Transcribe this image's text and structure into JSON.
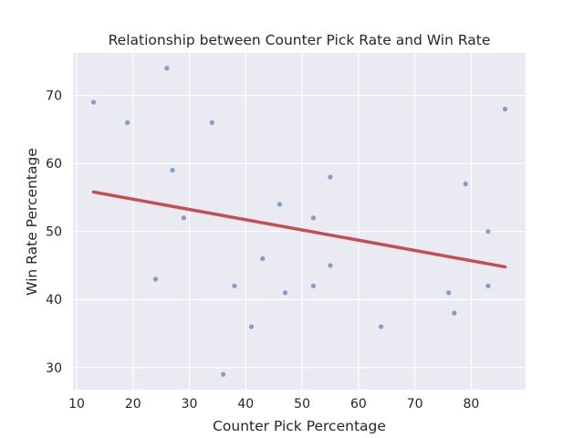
{
  "chart_data": {
    "type": "scatter",
    "title": "Relationship between Counter Pick Rate and Win Rate",
    "xlabel": "Counter Pick Percentage",
    "ylabel": "Win Rate Percentage",
    "xlim": [
      9.35,
      89.65
    ],
    "ylim": [
      26.75,
      76.25
    ],
    "xticks": [
      10,
      20,
      30,
      40,
      50,
      60,
      70,
      80
    ],
    "yticks": [
      30,
      40,
      50,
      60,
      70
    ],
    "grid": true,
    "colors": {
      "background": "#EAEAF2",
      "grid": "#FFFFFF",
      "points": "#4C72B0",
      "regression": "#C44E52"
    },
    "series": [
      {
        "points": [
          [
            13,
            69
          ],
          [
            19,
            66
          ],
          [
            24,
            43
          ],
          [
            26,
            74
          ],
          [
            27,
            59
          ],
          [
            29,
            52
          ],
          [
            34,
            66
          ],
          [
            36,
            29
          ],
          [
            38,
            42
          ],
          [
            41,
            36
          ],
          [
            43,
            46
          ],
          [
            46,
            54
          ],
          [
            47,
            41
          ],
          [
            52,
            52
          ],
          [
            52,
            42
          ],
          [
            55,
            58
          ],
          [
            55,
            45
          ],
          [
            64,
            36
          ],
          [
            76,
            41
          ],
          [
            77,
            38
          ],
          [
            79,
            57
          ],
          [
            83,
            50
          ],
          [
            83,
            42
          ],
          [
            86,
            68
          ]
        ]
      }
    ],
    "regression_line": {
      "x": [
        13,
        86
      ],
      "y": [
        55.8,
        44.8
      ]
    }
  }
}
